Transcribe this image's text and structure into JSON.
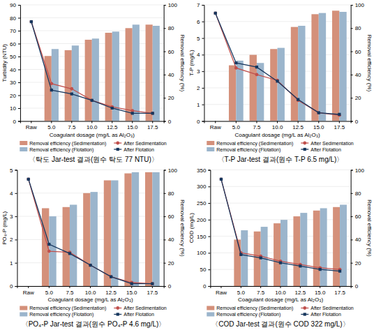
{
  "chart_data": [
    {
      "type": "bar",
      "title": "〈탁도 Jar-test 결과(원수 탁도 77 NTU)〉",
      "x_label": "Coagulant dosage (mg/L as Al₂O₃)",
      "y_label": "Turbidity (NTU)",
      "y2_label": "Removal efficiency (%)",
      "categories": [
        "Raw",
        "5.0",
        "7.5",
        "10.0",
        "12.5",
        "15.0",
        "17.5"
      ],
      "ylim": [
        0,
        90
      ],
      "yticks": [
        0,
        10,
        20,
        30,
        40,
        50,
        60,
        70,
        80,
        90
      ],
      "y2lim": [
        0,
        100
      ],
      "y2ticks": [
        0,
        20,
        40,
        60,
        80,
        100
      ],
      "grid": true,
      "legend": "bottom",
      "series": [
        {
          "name": "Removal efficiency (Sedimentation)",
          "type": "bar",
          "axis": "y2",
          "color": "#D4907A",
          "values": [
            0,
            56,
            61,
            70,
            76,
            80,
            83
          ]
        },
        {
          "name": "Removal efficiency (Flotation)",
          "type": "bar",
          "axis": "y2",
          "color": "#9BB5CC",
          "values": [
            0,
            62,
            65,
            71,
            77,
            83,
            82
          ]
        },
        {
          "name": "After Sedimentation",
          "type": "line",
          "color": "#C0504D",
          "marker": "circle",
          "values": [
            77,
            29,
            25,
            16,
            11,
            8,
            6
          ]
        },
        {
          "name": "After Flotation",
          "type": "line",
          "color": "#17375E",
          "marker": "square",
          "values": [
            77,
            24,
            21,
            16,
            10,
            6,
            6
          ]
        }
      ]
    },
    {
      "type": "bar",
      "title": "〈T-P Jar-test 결과(원수 T-P 6.5 mg/L)〉",
      "x_label": "Coagulant dosage (mg/L as Al₂O₃)",
      "y_label": "T-P (mg/L)",
      "y2_label": "Removal efficiency (%)",
      "categories": [
        "Raw",
        "5.0",
        "7.5",
        "10.0",
        "12.5",
        "15.0",
        "17.5"
      ],
      "ylim": [
        0,
        7
      ],
      "yticks": [
        0,
        1,
        2,
        3,
        4,
        5,
        6,
        7
      ],
      "y2lim": [
        0,
        100
      ],
      "y2ticks": [
        0,
        20,
        40,
        60,
        80,
        100
      ],
      "grid": true,
      "legend": "bottom",
      "series": [
        {
          "name": "Removal efficiency (Sedimentation)",
          "type": "bar",
          "axis": "y2",
          "color": "#D4907A",
          "values": [
            0,
            48,
            57,
            62,
            81,
            92,
            95
          ]
        },
        {
          "name": "Removal efficiency (Flotation)",
          "type": "bar",
          "axis": "y2",
          "color": "#9BB5CC",
          "values": [
            0,
            52,
            50,
            63,
            82,
            93,
            94
          ]
        },
        {
          "name": "After Sedimentation",
          "type": "line",
          "color": "#C0504D",
          "marker": "circle",
          "values": [
            6.5,
            3.2,
            2.8,
            2.45,
            1.25,
            0.5,
            0.35
          ]
        },
        {
          "name": "After Flotation",
          "type": "line",
          "color": "#17375E",
          "marker": "square",
          "values": [
            6.5,
            3.5,
            3.25,
            2.4,
            1.3,
            0.5,
            0.4
          ]
        }
      ]
    },
    {
      "type": "bar",
      "title": "〈PO₄-P Jar-test 결과(원수 PO₄-P 4.6 mg/L)〉",
      "x_label": "Coagulant dosage (mg/L as Al₂O₃)",
      "y_label": "PO₄-P (mg/L)",
      "y2_label": "Removal efficiency (%)",
      "categories": [
        "Raw",
        "5.0",
        "7.5",
        "10.0",
        "12.5",
        "15.0",
        "17.5"
      ],
      "ylim": [
        0,
        5
      ],
      "yticks": [
        0,
        1,
        2,
        3,
        4,
        5
      ],
      "y2lim": [
        0,
        100
      ],
      "y2ticks": [
        0,
        20,
        40,
        60,
        80,
        100
      ],
      "grid": true,
      "legend": "bottom",
      "series": [
        {
          "name": "Removal efficiency (Sedimentation)",
          "type": "bar",
          "axis": "y2",
          "color": "#D4907A",
          "values": [
            0,
            67,
            68,
            80,
            91,
            97,
            98
          ]
        },
        {
          "name": "Removal efficiency (Flotation)",
          "type": "bar",
          "axis": "y2",
          "color": "#9BB5CC",
          "values": [
            0,
            60,
            70,
            81,
            91,
            98,
            98
          ]
        },
        {
          "name": "After Sedimentation",
          "type": "line",
          "color": "#C0504D",
          "marker": "circle",
          "values": [
            4.6,
            1.5,
            1.45,
            0.9,
            0.4,
            0.15,
            0.1
          ]
        },
        {
          "name": "After Flotation",
          "type": "line",
          "color": "#17375E",
          "marker": "square",
          "values": [
            4.6,
            1.8,
            1.4,
            0.9,
            0.4,
            0.1,
            0.1
          ]
        }
      ]
    },
    {
      "type": "bar",
      "title": "〈COD Jar-test 결과(원수 COD 322 mg/L)〉",
      "x_label": "Coagulant dosage (mg/L as Al₂O₃)",
      "y_label": "COD (mg/L)",
      "y2_label": "Removal efficiency (%)",
      "categories": [
        "Raw",
        "5.0",
        "7.5",
        "10.0",
        "12.5",
        "15.0",
        "17.5"
      ],
      "ylim": [
        0,
        350
      ],
      "yticks": [
        0,
        50,
        100,
        150,
        200,
        250,
        300,
        350
      ],
      "y2lim": [
        0,
        100
      ],
      "y2ticks": [
        0,
        20,
        40,
        60,
        80,
        100
      ],
      "grid": true,
      "legend": "bottom",
      "series": [
        {
          "name": "Removal efficiency (Sedimentation)",
          "type": "bar",
          "axis": "y2",
          "color": "#D4907A",
          "values": [
            0,
            40,
            47,
            54,
            60,
            65,
            68
          ]
        },
        {
          "name": "Removal efficiency (Flotation)",
          "type": "bar",
          "axis": "y2",
          "color": "#9BB5CC",
          "values": [
            0,
            48,
            51,
            57,
            63,
            67,
            70
          ]
        },
        {
          "name": "After Sedimentation",
          "type": "line",
          "color": "#C0504D",
          "marker": "circle",
          "values": [
            322,
            100,
            90,
            75,
            65,
            55,
            50
          ]
        },
        {
          "name": "After Flotation",
          "type": "line",
          "color": "#17375E",
          "marker": "square",
          "values": [
            322,
            95,
            85,
            70,
            60,
            50,
            45
          ]
        }
      ]
    }
  ]
}
